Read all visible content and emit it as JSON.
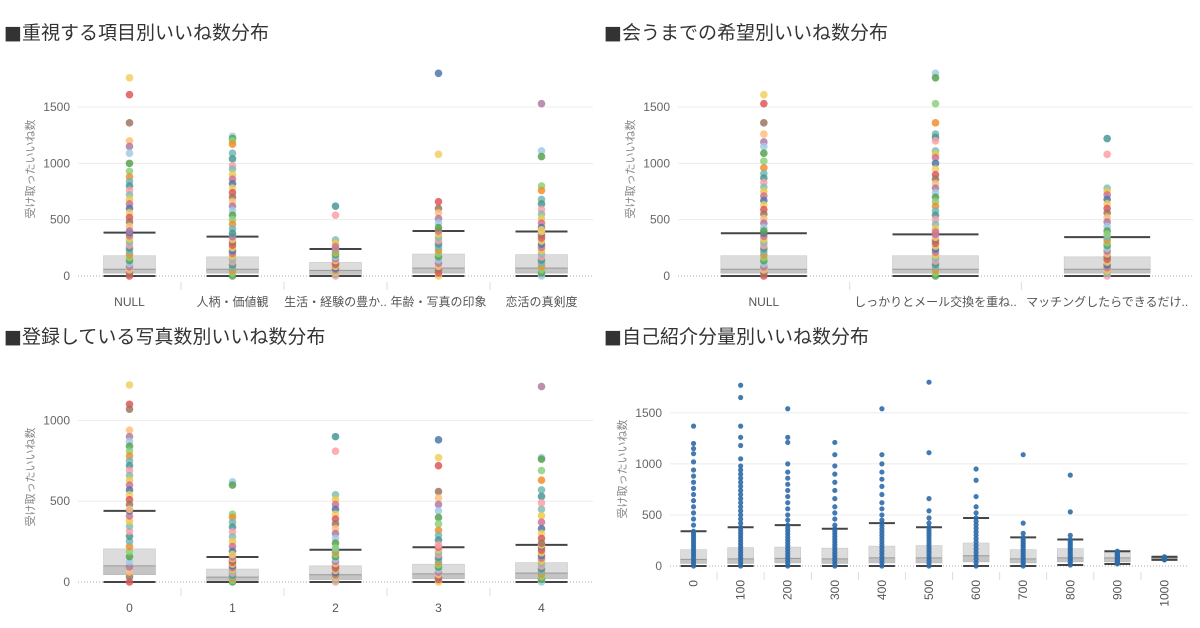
{
  "chart_data": [
    {
      "id": "p1",
      "type": "box-and-scatter",
      "title": "■重視する項目別いいね数分布",
      "ylabel": "受け取ったいいね数",
      "ylim": [
        0,
        1900
      ],
      "yticks": [
        0,
        500,
        1000,
        1500
      ],
      "categories": [
        "NULL",
        "人柄・価値観",
        "生活・経験の豊か..",
        "年齢・写真の印象",
        "恋活の真剣度"
      ],
      "stats": [
        {
          "min": 0,
          "q1": 25,
          "median": 60,
          "q3": 180,
          "whisker": 385
        },
        {
          "min": 0,
          "q1": 25,
          "median": 60,
          "q3": 170,
          "whisker": 350
        },
        {
          "min": 0,
          "q1": 15,
          "median": 50,
          "q3": 120,
          "whisker": 240
        },
        {
          "min": 0,
          "q1": 25,
          "median": 70,
          "q3": 195,
          "whisker": 400
        },
        {
          "min": 0,
          "q1": 25,
          "median": 70,
          "q3": 190,
          "whisker": 395
        }
      ],
      "outliers": [
        [
          1760,
          1610,
          1360,
          1200,
          1150,
          1090,
          1000,
          930,
          880,
          840,
          800,
          760,
          720,
          680,
          640,
          600,
          560,
          520,
          480,
          440,
          400
        ],
        [
          1240,
          1220,
          1200,
          1170,
          1090,
          1040,
          980,
          950,
          900,
          860,
          820,
          780,
          740,
          700,
          660,
          620,
          580,
          540,
          500,
          460,
          420,
          380
        ],
        [
          620,
          540,
          320,
          290,
          260
        ],
        [
          1800,
          1080,
          660,
          600,
          560,
          510,
          470,
          430
        ],
        [
          1530,
          1110,
          1060,
          800,
          760,
          680,
          640,
          590,
          550,
          510,
          470,
          430,
          410
        ]
      ]
    },
    {
      "id": "p2",
      "type": "box-and-scatter",
      "title": "■会うまでの希望別いいね数分布",
      "ylabel": "受け取ったいいね数",
      "ylim": [
        0,
        1900
      ],
      "yticks": [
        0,
        500,
        1000,
        1500
      ],
      "categories": [
        "NULL",
        "しっかりとメール交換を重ね..",
        "マッチングしたらできるだけ.."
      ],
      "stats": [
        {
          "min": 0,
          "q1": 25,
          "median": 60,
          "q3": 180,
          "whisker": 380
        },
        {
          "min": 0,
          "q1": 25,
          "median": 60,
          "q3": 180,
          "whisker": 370
        },
        {
          "min": 0,
          "q1": 25,
          "median": 60,
          "q3": 170,
          "whisker": 345
        }
      ],
      "outliers": [
        [
          1610,
          1530,
          1360,
          1260,
          1190,
          1150,
          1090,
          1020,
          960,
          910,
          870,
          830,
          790,
          750,
          710,
          670,
          630,
          590,
          550,
          510,
          470,
          430,
          400
        ],
        [
          1800,
          1760,
          1530,
          1360,
          1260,
          1230,
          1200,
          1110,
          1080,
          1050,
          1000,
          950,
          900,
          860,
          820,
          780,
          740,
          700,
          660,
          620,
          580,
          540,
          500,
          460,
          420,
          390
        ],
        [
          1220,
          1080,
          780,
          750,
          720,
          680,
          640,
          600,
          560,
          520,
          480,
          440,
          400,
          370
        ]
      ]
    },
    {
      "id": "p3",
      "type": "box-and-scatter",
      "title": "■登録している写真数別いいね数分布",
      "ylabel": "受け取ったいいね数",
      "ylim": [
        0,
        1300
      ],
      "yticks": [
        0,
        500,
        1000
      ],
      "categories": [
        "0",
        "1",
        "2",
        "3",
        "4"
      ],
      "stats": [
        {
          "min": 0,
          "q1": 45,
          "median": 100,
          "q3": 205,
          "whisker": 440
        },
        {
          "min": 0,
          "q1": 10,
          "median": 30,
          "q3": 80,
          "whisker": 155
        },
        {
          "min": 0,
          "q1": 15,
          "median": 45,
          "q3": 100,
          "whisker": 200
        },
        {
          "min": 0,
          "q1": 20,
          "median": 50,
          "q3": 110,
          "whisker": 215
        },
        {
          "min": 0,
          "q1": 20,
          "median": 55,
          "q3": 120,
          "whisker": 230
        }
      ],
      "outliers": [
        [
          1220,
          1100,
          1070,
          940,
          900,
          870,
          840,
          810,
          780,
          750,
          720,
          690,
          660,
          630,
          600,
          570,
          540,
          510,
          480,
          450
        ],
        [
          620,
          600,
          420,
          400,
          370,
          340,
          310,
          280,
          250,
          220,
          190,
          170
        ],
        [
          900,
          810,
          540,
          510,
          480,
          450,
          420,
          390,
          360,
          330,
          300,
          270,
          240,
          210
        ],
        [
          880,
          770,
          720,
          560,
          520,
          480,
          440,
          400,
          360,
          320,
          290,
          260,
          230
        ],
        [
          1210,
          770,
          760,
          690,
          630,
          570,
          530,
          490,
          450,
          410,
          370,
          330,
          300,
          270,
          240
        ]
      ]
    },
    {
      "id": "p4",
      "type": "box-and-scatter",
      "title": "■自己紹介分量別いいね数分布",
      "ylabel": "受け取ったいいね数",
      "ylim": [
        0,
        1900
      ],
      "yticks": [
        0,
        500,
        1000,
        1500
      ],
      "categories": [
        "0",
        "100",
        "200",
        "300",
        "400",
        "500",
        "600",
        "700",
        "800",
        "900",
        "1000"
      ],
      "stats": [
        {
          "min": 0,
          "q1": 25,
          "median": 65,
          "q3": 160,
          "whisker": 340
        },
        {
          "min": 0,
          "q1": 25,
          "median": 70,
          "q3": 180,
          "whisker": 380
        },
        {
          "min": 0,
          "q1": 30,
          "median": 75,
          "q3": 185,
          "whisker": 400
        },
        {
          "min": 0,
          "q1": 25,
          "median": 70,
          "q3": 175,
          "whisker": 365
        },
        {
          "min": 0,
          "q1": 30,
          "median": 80,
          "q3": 195,
          "whisker": 420
        },
        {
          "min": 0,
          "q1": 30,
          "median": 80,
          "q3": 200,
          "whisker": 380
        },
        {
          "min": 0,
          "q1": 40,
          "median": 100,
          "q3": 225,
          "whisker": 470
        },
        {
          "min": 0,
          "q1": 30,
          "median": 70,
          "q3": 160,
          "whisker": 280
        },
        {
          "min": 10,
          "q1": 40,
          "median": 80,
          "q3": 170,
          "whisker": 260
        },
        {
          "min": 20,
          "q1": 40,
          "median": 80,
          "q3": 130,
          "whisker": 145
        },
        {
          "min": 60,
          "q1": 70,
          "median": 80,
          "q3": 85,
          "whisker": 90
        }
      ],
      "outliers": [
        [
          1370,
          1200,
          1150,
          1100,
          1020,
          940,
          880,
          820,
          760,
          700,
          640,
          580,
          520,
          460,
          400
        ],
        [
          1770,
          1650,
          1370,
          1260,
          1180,
          1050,
          980,
          940,
          900,
          860,
          820,
          780,
          740,
          700,
          660,
          620,
          580,
          540,
          500,
          460,
          420
        ],
        [
          1540,
          1260,
          1210,
          1000,
          920,
          860,
          800,
          740,
          680,
          620,
          560,
          500,
          450
        ],
        [
          1210,
          1090,
          980,
          900,
          820,
          740,
          660,
          580,
          520,
          460,
          400
        ],
        [
          1540,
          1090,
          1000,
          920,
          850,
          780,
          700,
          620,
          560,
          500,
          450
        ],
        [
          1800,
          1110,
          660,
          540,
          470,
          420
        ],
        [
          950,
          840,
          680,
          580,
          520
        ],
        [
          1090,
          420,
          320
        ],
        [
          890,
          530,
          300
        ],
        [],
        []
      ]
    }
  ],
  "palette": [
    "#e15759",
    "#f28e2b",
    "#4e79a7",
    "#59a14f",
    "#edc948",
    "#b07aa1",
    "#ff9da7",
    "#9c755f",
    "#76b7b2",
    "#f1ce63",
    "#8cd17d",
    "#d37295",
    "#a0cbe8",
    "#86bcb6",
    "#ffbe7d",
    "#499894"
  ],
  "single_color": "#2f6ca8"
}
